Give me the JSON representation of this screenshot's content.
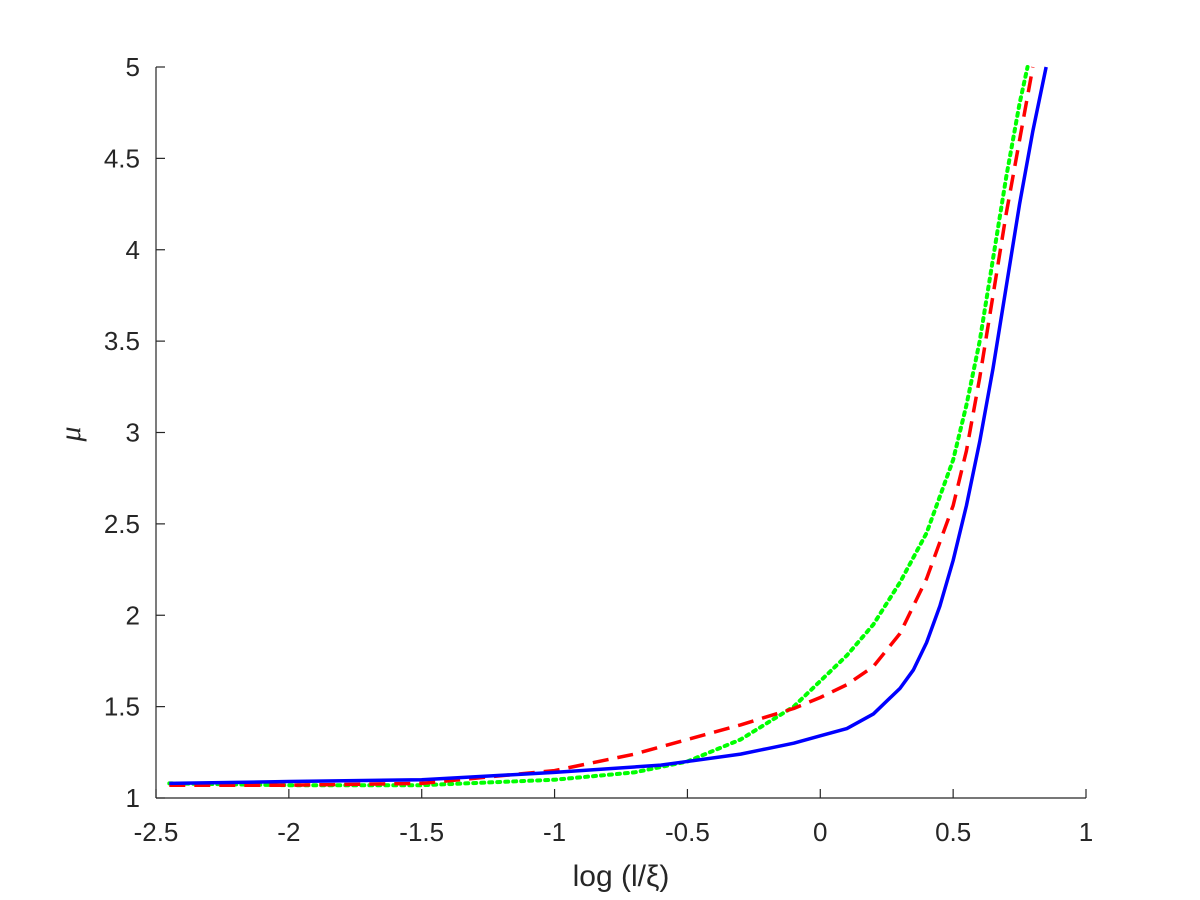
{
  "chart_data": {
    "type": "line",
    "title": "",
    "xlabel": "log (l/ξ)",
    "ylabel": "μ",
    "xlim": [
      -2.5,
      1
    ],
    "ylim": [
      1,
      5
    ],
    "xticks": [
      "-2.5",
      "-2",
      "-1.5",
      "-1",
      "-0.5",
      "0",
      "0.5",
      "1"
    ],
    "yticks": [
      "1",
      "1.5",
      "2",
      "2.5",
      "3",
      "3.5",
      "4",
      "4.5",
      "5"
    ],
    "grid": false,
    "legend": "none",
    "series": [
      {
        "style": "solid",
        "color": "#0000ff",
        "x": [
          -2.45,
          -2.0,
          -1.5,
          -1.0,
          -0.6,
          -0.5,
          -0.3,
          -0.2,
          -0.1,
          0.0,
          0.1,
          0.2,
          0.3,
          0.35,
          0.4,
          0.45,
          0.5,
          0.55,
          0.6,
          0.65,
          0.7,
          0.75,
          0.8,
          0.85
        ],
        "y": [
          1.08,
          1.09,
          1.1,
          1.14,
          1.18,
          1.2,
          1.24,
          1.27,
          1.3,
          1.34,
          1.38,
          1.46,
          1.6,
          1.7,
          1.85,
          2.05,
          2.3,
          2.6,
          2.95,
          3.35,
          3.8,
          4.25,
          4.65,
          5.0
        ]
      },
      {
        "style": "dashed",
        "color": "#ff0000",
        "x": [
          -2.45,
          -2.0,
          -1.5,
          -1.0,
          -0.7,
          -0.5,
          -0.3,
          -0.1,
          0.0,
          0.1,
          0.2,
          0.3,
          0.4,
          0.5,
          0.55,
          0.6,
          0.65,
          0.7,
          0.75,
          0.8
        ],
        "y": [
          1.07,
          1.07,
          1.08,
          1.15,
          1.24,
          1.32,
          1.4,
          1.49,
          1.55,
          1.62,
          1.72,
          1.9,
          2.2,
          2.6,
          2.9,
          3.3,
          3.75,
          4.2,
          4.6,
          5.0
        ]
      },
      {
        "style": "dotted",
        "color": "#00ff00",
        "x": [
          -2.45,
          -2.0,
          -1.5,
          -1.0,
          -0.7,
          -0.5,
          -0.3,
          -0.1,
          0.0,
          0.1,
          0.2,
          0.3,
          0.4,
          0.5,
          0.55,
          0.6,
          0.65,
          0.7,
          0.75,
          0.78
        ],
        "y": [
          1.08,
          1.07,
          1.07,
          1.1,
          1.14,
          1.2,
          1.32,
          1.5,
          1.64,
          1.78,
          1.95,
          2.18,
          2.45,
          2.85,
          3.15,
          3.5,
          3.95,
          4.4,
          4.8,
          5.0
        ]
      }
    ]
  }
}
